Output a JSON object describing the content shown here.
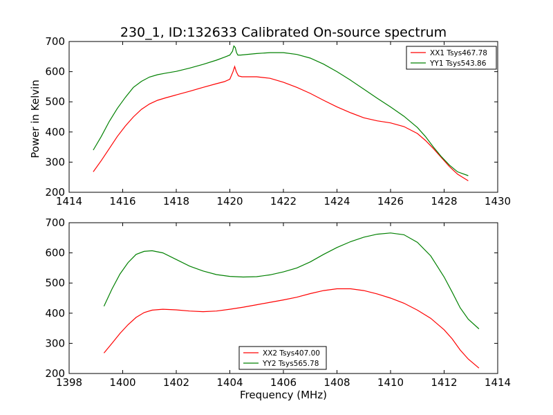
{
  "figure": {
    "title": "230_1, ID:132633 Calibrated On-source spectrum",
    "ylabel": "Power in Kelvin",
    "xlabel": "Frequency (MHz)"
  },
  "chart_data": [
    {
      "type": "line",
      "title": "230_1, ID:132633 Calibrated On-source spectrum",
      "ylabel": "Power in Kelvin",
      "xlabel": "",
      "xlim": [
        1414,
        1430
      ],
      "ylim": [
        200,
        700
      ],
      "xticks": [
        1414,
        1416,
        1418,
        1420,
        1422,
        1424,
        1426,
        1428,
        1430
      ],
      "yticks": [
        200,
        300,
        400,
        500,
        600,
        700
      ],
      "grid": false,
      "legend_position": "top-right",
      "series": [
        {
          "name": "XX1 Tsys467.78",
          "color": "#ff0000",
          "x": [
            1414.9,
            1415.2,
            1415.5,
            1415.8,
            1416.1,
            1416.4,
            1416.7,
            1417.0,
            1417.3,
            1417.6,
            1418.0,
            1418.5,
            1419.0,
            1419.5,
            1419.8,
            1420.0,
            1420.12,
            1420.18,
            1420.24,
            1420.32,
            1420.45,
            1421.0,
            1421.5,
            1422.0,
            1422.5,
            1423.0,
            1423.5,
            1424.0,
            1424.5,
            1425.0,
            1425.5,
            1426.0,
            1426.5,
            1427.0,
            1427.3,
            1427.6,
            1427.9,
            1428.2,
            1428.5,
            1428.9
          ],
          "y": [
            268,
            305,
            345,
            385,
            420,
            450,
            475,
            493,
            505,
            513,
            523,
            535,
            548,
            560,
            567,
            575,
            600,
            617,
            600,
            586,
            583,
            583,
            578,
            565,
            548,
            528,
            505,
            483,
            464,
            447,
            437,
            430,
            418,
            395,
            372,
            345,
            315,
            285,
            260,
            238
          ]
        },
        {
          "name": "YY1 Tsys543.86",
          "color": "#008000",
          "x": [
            1414.9,
            1415.2,
            1415.5,
            1415.8,
            1416.1,
            1416.4,
            1416.7,
            1417.0,
            1417.3,
            1417.6,
            1418.0,
            1418.5,
            1419.0,
            1419.5,
            1419.8,
            1420.0,
            1420.1,
            1420.15,
            1420.2,
            1420.25,
            1420.3,
            1420.4,
            1421.0,
            1421.5,
            1422.0,
            1422.5,
            1423.0,
            1423.5,
            1424.0,
            1424.5,
            1425.0,
            1425.5,
            1426.0,
            1426.5,
            1427.0,
            1427.3,
            1427.6,
            1427.9,
            1428.2,
            1428.5,
            1428.9
          ],
          "y": [
            340,
            385,
            435,
            478,
            515,
            548,
            568,
            582,
            590,
            595,
            601,
            612,
            624,
            638,
            648,
            655,
            668,
            685,
            680,
            663,
            655,
            655,
            660,
            663,
            663,
            657,
            645,
            625,
            600,
            572,
            542,
            512,
            483,
            452,
            415,
            385,
            350,
            318,
            290,
            268,
            255
          ]
        }
      ]
    },
    {
      "type": "line",
      "title": "",
      "ylabel": "Power in Kelvin",
      "xlabel": "Frequency (MHz)",
      "xlim": [
        1398,
        1414
      ],
      "ylim": [
        200,
        700
      ],
      "xticks": [
        1398,
        1400,
        1402,
        1404,
        1406,
        1408,
        1410,
        1412,
        1414
      ],
      "yticks": [
        200,
        300,
        400,
        500,
        600,
        700
      ],
      "grid": false,
      "legend_position": "bottom-center",
      "series": [
        {
          "name": "XX2 Tsys407.00",
          "color": "#ff0000",
          "x": [
            1399.3,
            1399.6,
            1399.9,
            1400.2,
            1400.5,
            1400.8,
            1401.1,
            1401.5,
            1402.0,
            1402.5,
            1403.0,
            1403.5,
            1404.0,
            1404.5,
            1405.0,
            1405.5,
            1406.0,
            1406.5,
            1407.0,
            1407.5,
            1408.0,
            1408.5,
            1409.0,
            1409.5,
            1410.0,
            1410.5,
            1411.0,
            1411.5,
            1412.0,
            1412.3,
            1412.6,
            1412.9,
            1413.3
          ],
          "y": [
            268,
            300,
            333,
            362,
            386,
            402,
            410,
            413,
            411,
            407,
            405,
            407,
            413,
            420,
            428,
            436,
            444,
            453,
            465,
            475,
            481,
            481,
            475,
            464,
            450,
            433,
            410,
            383,
            345,
            315,
            278,
            248,
            218
          ]
        },
        {
          "name": "YY2 Tsys565.78",
          "color": "#008000",
          "x": [
            1399.3,
            1399.6,
            1399.9,
            1400.2,
            1400.5,
            1400.8,
            1401.1,
            1401.5,
            1402.0,
            1402.5,
            1403.0,
            1403.5,
            1404.0,
            1404.5,
            1405.0,
            1405.5,
            1406.0,
            1406.5,
            1407.0,
            1407.5,
            1408.0,
            1408.5,
            1409.0,
            1409.5,
            1410.0,
            1410.5,
            1411.0,
            1411.5,
            1412.0,
            1412.3,
            1412.6,
            1412.9,
            1413.3
          ],
          "y": [
            423,
            480,
            530,
            568,
            595,
            605,
            607,
            600,
            578,
            556,
            540,
            528,
            522,
            520,
            521,
            527,
            537,
            550,
            570,
            595,
            618,
            637,
            652,
            662,
            666,
            660,
            635,
            590,
            520,
            470,
            418,
            380,
            348
          ]
        }
      ]
    }
  ]
}
